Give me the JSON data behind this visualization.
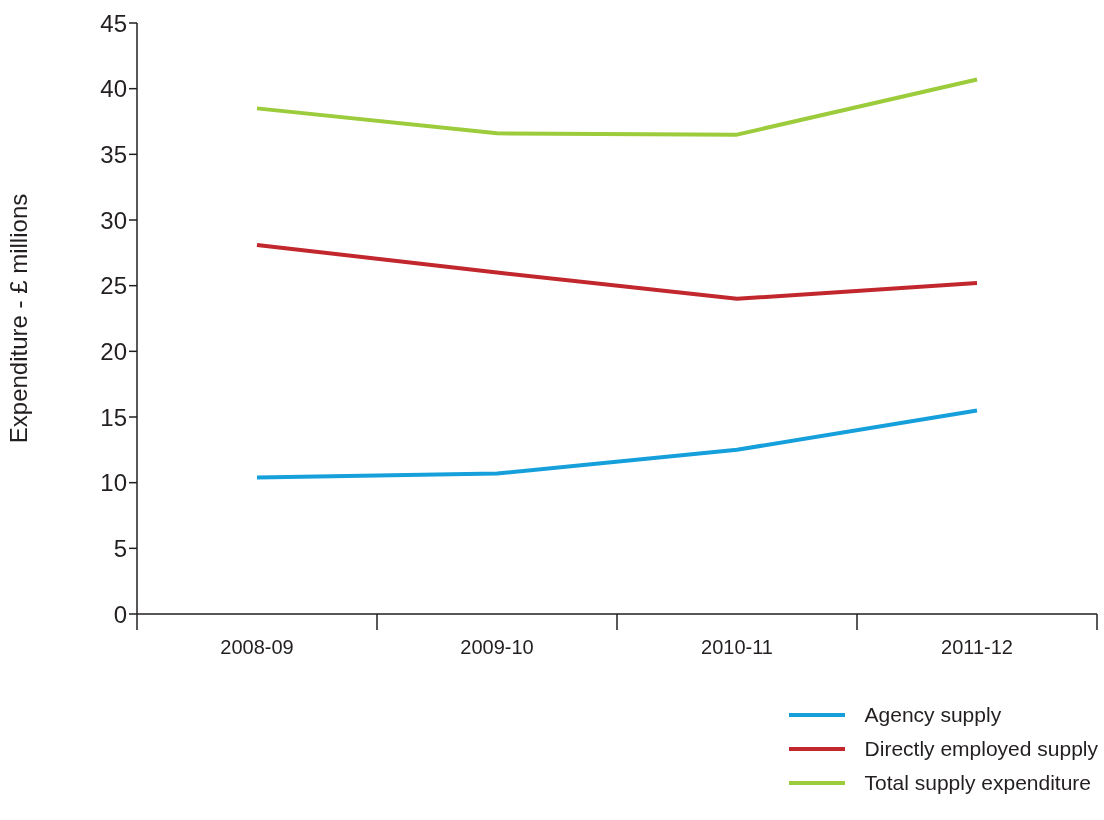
{
  "chart_data": {
    "type": "line",
    "ylabel": "Expenditure - £ millions",
    "categories": [
      "2008-09",
      "2009-10",
      "2010-11",
      "2011-12"
    ],
    "series": [
      {
        "name": "Agency supply",
        "color": "#159fdb",
        "values": [
          10.4,
          10.7,
          12.5,
          15.5
        ]
      },
      {
        "name": "Directly employed supply",
        "color": "#c1272d",
        "values": [
          28.1,
          26.0,
          24.0,
          25.2
        ]
      },
      {
        "name": "Total supply expenditure",
        "color": "#9ccb3b",
        "values": [
          38.5,
          36.6,
          36.5,
          40.7
        ]
      }
    ],
    "ylim": [
      0,
      45
    ],
    "yticks": [
      0,
      5,
      10,
      15,
      20,
      25,
      30,
      35,
      40,
      45
    ],
    "grid": false,
    "legend": "bottom right",
    "marker": "none",
    "line_style": "solid"
  }
}
